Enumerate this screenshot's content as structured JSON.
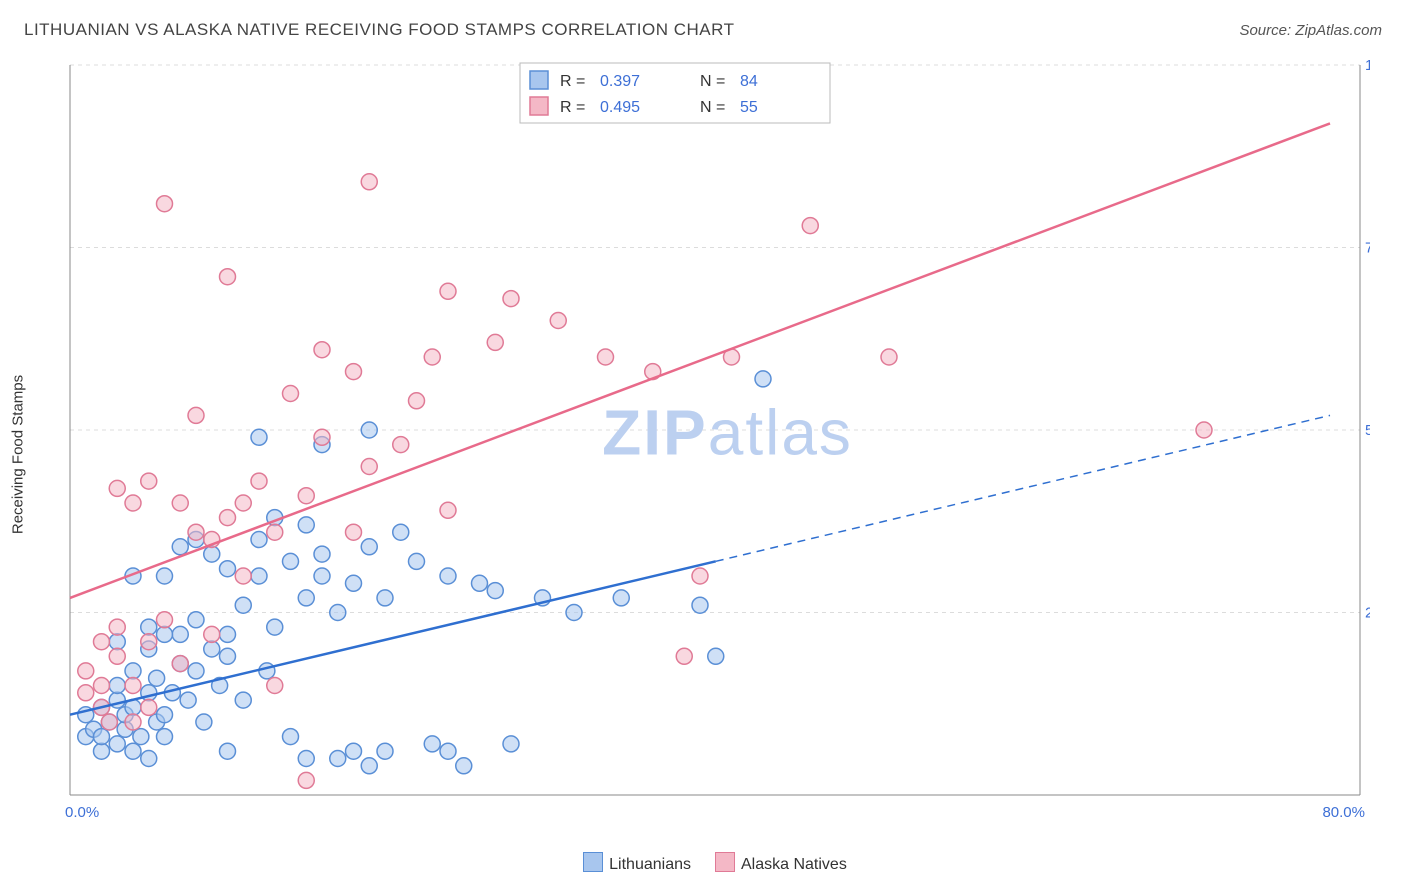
{
  "title": "LITHUANIAN VS ALASKA NATIVE RECEIVING FOOD STAMPS CORRELATION CHART",
  "source": "Source: ZipAtlas.com",
  "ylabel": "Receiving Food Stamps",
  "watermark": {
    "part1": "ZIP",
    "part2": "atlas"
  },
  "chart": {
    "type": "scatter",
    "background_color": "#ffffff",
    "grid_color": "#dcdcdc",
    "grid_dash": "4,4",
    "axis_line_color": "#888888",
    "xlim": [
      0,
      80
    ],
    "ylim": [
      0,
      100
    ],
    "x_ticks": [
      0,
      80
    ],
    "x_tick_labels": [
      "0.0%",
      "80.0%"
    ],
    "y_ticks": [
      25,
      50,
      75,
      100
    ],
    "y_tick_labels": [
      "25.0%",
      "50.0%",
      "75.0%",
      "100.0%"
    ],
    "tick_color": "#3d6fd6",
    "tick_fontsize": 15,
    "marker_radius": 8,
    "marker_stroke_width": 1.5,
    "trend_line_width": 2.5,
    "series": [
      {
        "name": "Lithuanians",
        "fill": "#a8c6ee",
        "stroke": "#5a8fd6",
        "fill_opacity": 0.55,
        "r_value": "0.397",
        "n_value": "84",
        "trend": {
          "x1": 0,
          "y1": 11,
          "x2": 80,
          "y2": 52,
          "solid_until_x": 41,
          "color": "#2f6fd0"
        },
        "points": [
          [
            1,
            8
          ],
          [
            1,
            11
          ],
          [
            1.5,
            9
          ],
          [
            2,
            6
          ],
          [
            2,
            12
          ],
          [
            2,
            8
          ],
          [
            2.5,
            10
          ],
          [
            3,
            7
          ],
          [
            3,
            13
          ],
          [
            3,
            15
          ],
          [
            3,
            21
          ],
          [
            3.5,
            9
          ],
          [
            3.5,
            11
          ],
          [
            4,
            6
          ],
          [
            4,
            12
          ],
          [
            4,
            17
          ],
          [
            4,
            30
          ],
          [
            4.5,
            8
          ],
          [
            5,
            14
          ],
          [
            5,
            20
          ],
          [
            5,
            23
          ],
          [
            5.5,
            10
          ],
          [
            5.5,
            16
          ],
          [
            6,
            30
          ],
          [
            6,
            11
          ],
          [
            6,
            8
          ],
          [
            6.5,
            14
          ],
          [
            7,
            18
          ],
          [
            7,
            22
          ],
          [
            7,
            34
          ],
          [
            7.5,
            13
          ],
          [
            8,
            24
          ],
          [
            8,
            35
          ],
          [
            8,
            17
          ],
          [
            8.5,
            10
          ],
          [
            9,
            20
          ],
          [
            9,
            33
          ],
          [
            9.5,
            15
          ],
          [
            10,
            22
          ],
          [
            10,
            31
          ],
          [
            10,
            6
          ],
          [
            10,
            19
          ],
          [
            11,
            13
          ],
          [
            11,
            26
          ],
          [
            12,
            49
          ],
          [
            12,
            35
          ],
          [
            12,
            30
          ],
          [
            12.5,
            17
          ],
          [
            13,
            23
          ],
          [
            13,
            38
          ],
          [
            14,
            32
          ],
          [
            14,
            8
          ],
          [
            15,
            27
          ],
          [
            15,
            37
          ],
          [
            15,
            5
          ],
          [
            16,
            30
          ],
          [
            16,
            33
          ],
          [
            16,
            48
          ],
          [
            17,
            25
          ],
          [
            17,
            5
          ],
          [
            18,
            29
          ],
          [
            18,
            6
          ],
          [
            19,
            50
          ],
          [
            19,
            34
          ],
          [
            19,
            4
          ],
          [
            20,
            6
          ],
          [
            20,
            27
          ],
          [
            21,
            36
          ],
          [
            22,
            32
          ],
          [
            23,
            7
          ],
          [
            24,
            6
          ],
          [
            24,
            30
          ],
          [
            25,
            4
          ],
          [
            26,
            29
          ],
          [
            27,
            28
          ],
          [
            28,
            7
          ],
          [
            30,
            27
          ],
          [
            32,
            25
          ],
          [
            35,
            27
          ],
          [
            40,
            26
          ],
          [
            41,
            19
          ],
          [
            44,
            57
          ],
          [
            5,
            5
          ],
          [
            6,
            22
          ]
        ]
      },
      {
        "name": "Alaska Natives",
        "fill": "#f4b8c6",
        "stroke": "#e07a96",
        "fill_opacity": 0.55,
        "r_value": "0.495",
        "n_value": "55",
        "trend": {
          "x1": 0,
          "y1": 27,
          "x2": 80,
          "y2": 92,
          "solid_until_x": 80,
          "color": "#e86a8a"
        },
        "points": [
          [
            1,
            14
          ],
          [
            1,
            17
          ],
          [
            2,
            12
          ],
          [
            2,
            21
          ],
          [
            2,
            15
          ],
          [
            2.5,
            10
          ],
          [
            3,
            19
          ],
          [
            3,
            23
          ],
          [
            3,
            42
          ],
          [
            4,
            15
          ],
          [
            4,
            40
          ],
          [
            4,
            10
          ],
          [
            5,
            21
          ],
          [
            5,
            43
          ],
          [
            5,
            12
          ],
          [
            6,
            81
          ],
          [
            6,
            24
          ],
          [
            7,
            18
          ],
          [
            7,
            40
          ],
          [
            8,
            36
          ],
          [
            8,
            52
          ],
          [
            9,
            22
          ],
          [
            9,
            35
          ],
          [
            10,
            38
          ],
          [
            10,
            71
          ],
          [
            11,
            30
          ],
          [
            11,
            40
          ],
          [
            12,
            43
          ],
          [
            13,
            36
          ],
          [
            13,
            15
          ],
          [
            14,
            55
          ],
          [
            15,
            41
          ],
          [
            15,
            2
          ],
          [
            16,
            49
          ],
          [
            16,
            61
          ],
          [
            18,
            36
          ],
          [
            18,
            58
          ],
          [
            19,
            84
          ],
          [
            19,
            45
          ],
          [
            21,
            48
          ],
          [
            22,
            54
          ],
          [
            23,
            60
          ],
          [
            24,
            69
          ],
          [
            24,
            39
          ],
          [
            27,
            62
          ],
          [
            28,
            68
          ],
          [
            31,
            65
          ],
          [
            34,
            60
          ],
          [
            37,
            58
          ],
          [
            39,
            19
          ],
          [
            40,
            30
          ],
          [
            42,
            60
          ],
          [
            47,
            78
          ],
          [
            52,
            60
          ],
          [
            72,
            50
          ]
        ]
      }
    ],
    "stat_box": {
      "r_label": "R =",
      "n_label": "N =",
      "label_color": "#333333",
      "value_color": "#3d6fd6",
      "border_color": "#bbbbbb",
      "bg_color": "#ffffff"
    },
    "bottom_legend": {
      "items": [
        {
          "label": "Lithuanians",
          "fill": "#a8c6ee",
          "stroke": "#5a8fd6"
        },
        {
          "label": "Alaska Natives",
          "fill": "#f4b8c6",
          "stroke": "#e07a96"
        }
      ]
    }
  }
}
